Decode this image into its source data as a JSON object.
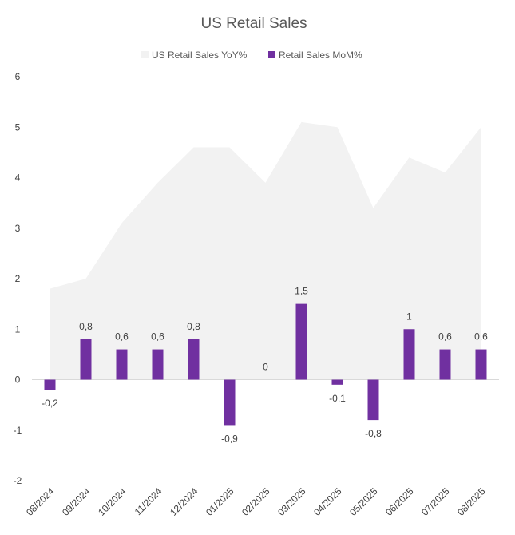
{
  "chart_data": {
    "type": "bar",
    "title": "US Retail Sales",
    "categories": [
      "08/2024",
      "09/2024",
      "10/2024",
      "11/2024",
      "12/2024",
      "01/2025",
      "02/2025",
      "03/2025",
      "04/2025",
      "05/2025",
      "06/2025",
      "07/2025",
      "08/2025"
    ],
    "series": [
      {
        "name": "US Retail Sales YoY%",
        "type": "area",
        "color": "#f2f2f2",
        "values": [
          1.8,
          2.0,
          3.1,
          3.9,
          4.6,
          4.6,
          3.9,
          5.1,
          5.0,
          3.4,
          4.4,
          4.1,
          5.0
        ]
      },
      {
        "name": "Retail Sales MoM%",
        "type": "bar",
        "color": "#7030a0",
        "values": [
          -0.2,
          0.8,
          0.6,
          0.6,
          0.8,
          -0.9,
          0,
          1.5,
          -0.1,
          -0.8,
          1,
          0.6,
          0.6
        ],
        "labels": [
          "-0,2",
          "0,8",
          "0,6",
          "0,6",
          "0,8",
          "-0,9",
          "0",
          "1,5",
          "-0,1",
          "-0,8",
          "1",
          "0,6",
          "0,6"
        ]
      }
    ],
    "ylim": [
      -2,
      6
    ],
    "yticks": [
      -2,
      -1,
      0,
      1,
      2,
      3,
      4,
      5,
      6
    ],
    "ytick_labels": [
      "-2",
      "-1",
      "0",
      "1",
      "2",
      "3",
      "4",
      "5",
      "6"
    ],
    "xlabel": "",
    "ylabel": "",
    "legend_position": "top",
    "grid": false
  }
}
